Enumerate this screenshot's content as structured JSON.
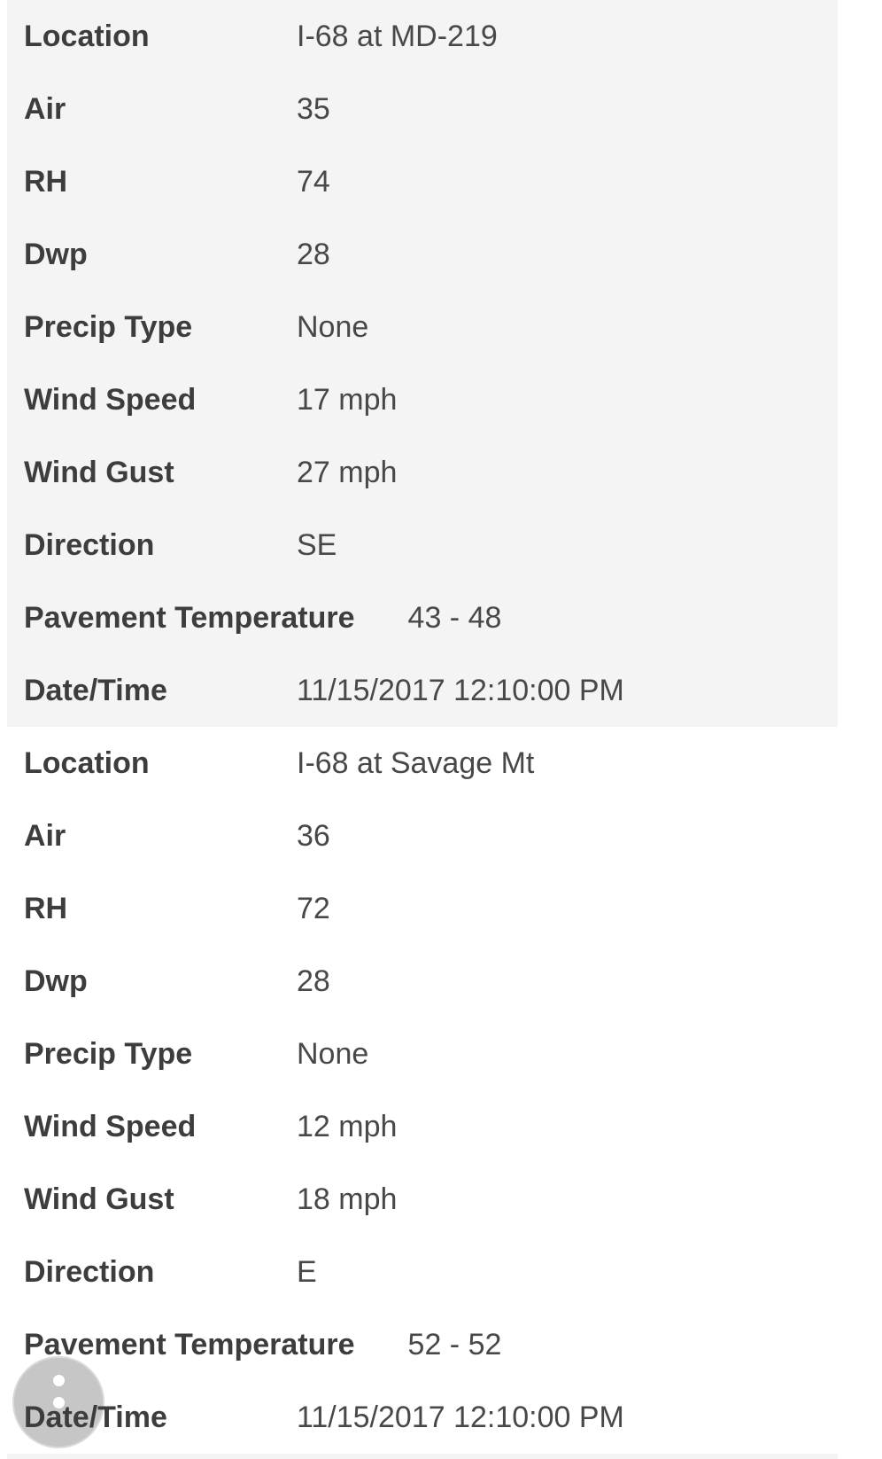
{
  "colors": {
    "page_bg": "#ffffff",
    "stripe_bg": "#f4f4f4",
    "label_text": "#3d3d3d",
    "value_text": "#484848",
    "fab_bg": "#c6c6c6",
    "fab_rim": "#d9d9d9",
    "fab_dot": "#ffffff"
  },
  "records": [
    {
      "rows": [
        {
          "label": "Location",
          "value": "I-68 at MD-219"
        },
        {
          "label": "Air",
          "value": "35"
        },
        {
          "label": "RH",
          "value": "74"
        },
        {
          "label": "Dwp",
          "value": "28"
        },
        {
          "label": "Precip Type",
          "value": "None"
        },
        {
          "label": "Wind Speed",
          "value": "17 mph"
        },
        {
          "label": "Wind Gust",
          "value": "27 mph"
        },
        {
          "label": "Direction",
          "value": "SE"
        },
        {
          "label": "Pavement Temperature",
          "value": "43 - 48"
        },
        {
          "label": "Date/Time",
          "value": "11/15/2017 12:10:00 PM"
        }
      ]
    },
    {
      "rows": [
        {
          "label": "Location",
          "value": "I-68 at Savage Mt"
        },
        {
          "label": "Air",
          "value": "36"
        },
        {
          "label": "RH",
          "value": "72"
        },
        {
          "label": "Dwp",
          "value": "28"
        },
        {
          "label": "Precip Type",
          "value": "None"
        },
        {
          "label": "Wind Speed",
          "value": "12 mph"
        },
        {
          "label": "Wind Gust",
          "value": "18 mph"
        },
        {
          "label": "Direction",
          "value": "E"
        },
        {
          "label": "Pavement Temperature",
          "value": "52 - 52"
        },
        {
          "label": "Date/Time",
          "value": "11/15/2017 12:10:00 PM"
        }
      ]
    }
  ],
  "fab": {
    "icon": "vertical-dots-icon",
    "visible_dots": 2
  }
}
